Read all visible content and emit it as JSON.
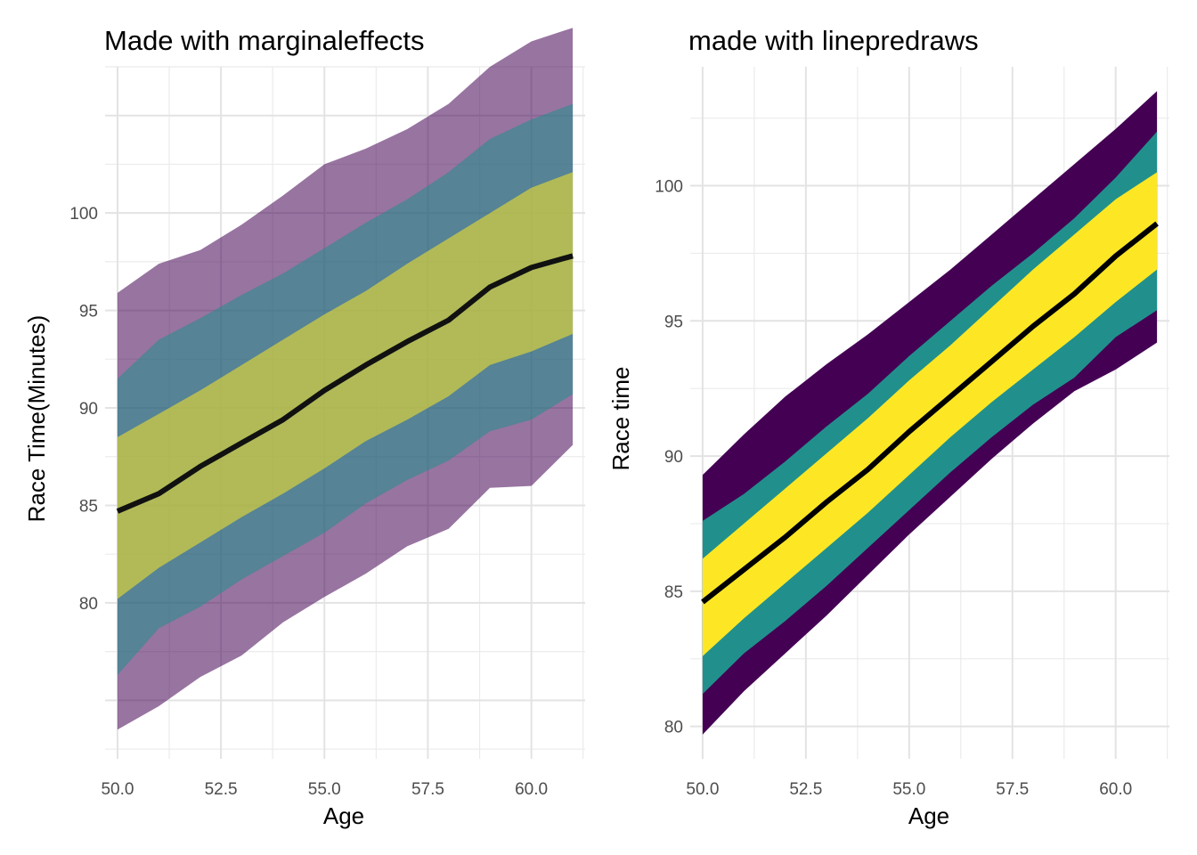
{
  "chart_data": [
    {
      "type": "area",
      "title": "Made with marginaleffects",
      "xlabel": "Age",
      "ylabel": "Race Time(Minutes)",
      "xlim": [
        49.7,
        61.3
      ],
      "ylim": [
        72.0,
        107.5
      ],
      "x_ticks": [
        "50.0",
        "52.5",
        "55.0",
        "57.5",
        "60.0"
      ],
      "y_ticks": [
        "80",
        "85",
        "90",
        "95",
        "100"
      ],
      "grid": true,
      "x": [
        50,
        51,
        52,
        53,
        54,
        55,
        56,
        57,
        58,
        59,
        60,
        61
      ],
      "bands": [
        {
          "color": "#440154",
          "opacity": 0.55,
          "lower": [
            73.5,
            74.7,
            76.2,
            77.3,
            79.0,
            80.3,
            81.5,
            82.9,
            83.8,
            85.9,
            86.0,
            88.1
          ],
          "upper": [
            95.9,
            97.4,
            98.1,
            99.4,
            100.9,
            102.5,
            103.3,
            104.3,
            105.6,
            107.5,
            108.8,
            109.5
          ]
        },
        {
          "color": "#21908C",
          "opacity": 0.55,
          "lower": [
            76.3,
            78.7,
            79.8,
            81.2,
            82.4,
            83.6,
            85.1,
            86.3,
            87.3,
            88.8,
            89.4,
            90.7
          ],
          "upper": [
            91.5,
            93.5,
            94.6,
            95.8,
            96.9,
            98.2,
            99.5,
            100.7,
            102.1,
            103.8,
            104.8,
            105.6
          ]
        },
        {
          "color": "#FDE725",
          "opacity": 0.55,
          "lower": [
            80.2,
            81.8,
            83.1,
            84.4,
            85.6,
            86.9,
            88.3,
            89.4,
            90.6,
            92.2,
            92.9,
            93.8
          ],
          "upper": [
            88.5,
            89.7,
            90.9,
            92.2,
            93.5,
            94.8,
            96.0,
            97.4,
            98.7,
            100.0,
            101.3,
            102.1
          ]
        }
      ],
      "series": [
        {
          "values": [
            84.7,
            85.6,
            87.0,
            88.2,
            89.4,
            90.9,
            92.2,
            93.4,
            94.5,
            96.2,
            97.2,
            97.8
          ]
        }
      ]
    },
    {
      "type": "area",
      "title": "made with linepredraws",
      "xlabel": "Age",
      "ylabel": "Race time",
      "xlim": [
        49.7,
        61.3
      ],
      "ylim": [
        78.8,
        104.4
      ],
      "x_ticks": [
        "50.0",
        "52.5",
        "55.0",
        "57.5",
        "60.0"
      ],
      "y_ticks": [
        "80",
        "85",
        "90",
        "95",
        "100"
      ],
      "grid": true,
      "x": [
        50,
        51,
        52,
        53,
        54,
        55,
        56,
        57,
        58,
        59,
        60,
        61
      ],
      "bands": [
        {
          "color": "#440154",
          "opacity": 1,
          "lower": [
            79.7,
            81.3,
            82.7,
            84.1,
            85.6,
            87.1,
            88.5,
            89.9,
            91.2,
            92.4,
            93.2,
            94.2
          ],
          "upper": [
            89.3,
            90.8,
            92.2,
            93.4,
            94.5,
            95.7,
            96.9,
            98.2,
            99.5,
            100.8,
            102.1,
            103.5
          ]
        },
        {
          "color": "#21908C",
          "opacity": 1,
          "lower": [
            81.2,
            82.7,
            83.9,
            85.2,
            86.6,
            88.0,
            89.4,
            90.7,
            91.9,
            92.9,
            94.4,
            95.4
          ],
          "upper": [
            87.6,
            88.6,
            89.8,
            91.1,
            92.3,
            93.7,
            95.0,
            96.3,
            97.5,
            98.8,
            100.3,
            102.0
          ]
        },
        {
          "color": "#FDE725",
          "opacity": 1,
          "lower": [
            82.6,
            84.0,
            85.3,
            86.6,
            87.9,
            89.3,
            90.7,
            92.0,
            93.2,
            94.4,
            95.7,
            96.9
          ],
          "upper": [
            86.2,
            87.5,
            88.8,
            90.1,
            91.4,
            92.8,
            94.1,
            95.5,
            96.9,
            98.2,
            99.5,
            100.5
          ]
        }
      ],
      "series": [
        {
          "values": [
            84.6,
            85.8,
            87.0,
            88.3,
            89.5,
            90.9,
            92.2,
            93.5,
            94.8,
            96.0,
            97.4,
            98.6
          ]
        }
      ]
    }
  ]
}
